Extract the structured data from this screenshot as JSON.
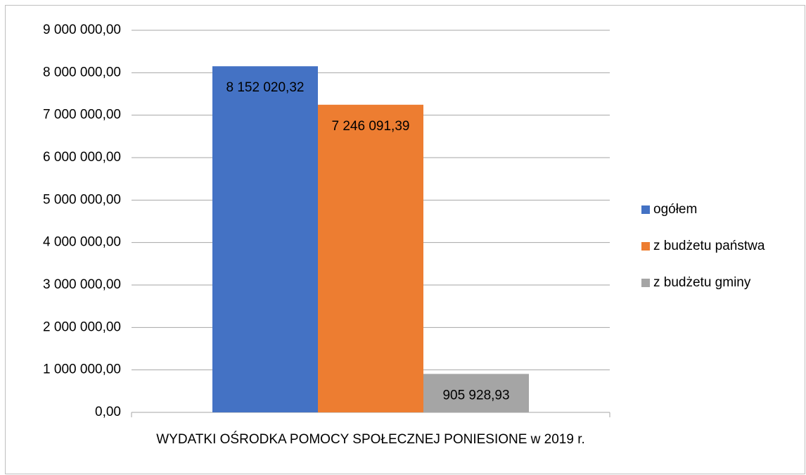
{
  "chart_data": {
    "type": "bar",
    "categories": [
      "WYDATKI OŚRODKA POMOCY SPOŁECZNEJ PONIESIONE w 2019 r."
    ],
    "series": [
      {
        "name": "ogółem",
        "color": "#4472c4",
        "values": [
          8152020.32
        ],
        "value_labels": [
          "8 152 020,32"
        ]
      },
      {
        "name": "z budżetu państwa",
        "color": "#ed7d31",
        "values": [
          7246091.39
        ],
        "value_labels": [
          "7 246 091,39"
        ]
      },
      {
        "name": "z budżetu gminy",
        "color": "#a5a5a5",
        "values": [
          905928.93
        ],
        "value_labels": [
          "905 928,93"
        ]
      }
    ],
    "ylim": [
      0,
      9000000
    ],
    "yticks": [
      {
        "value": 0,
        "label": "0,00"
      },
      {
        "value": 1000000,
        "label": "1 000 000,00"
      },
      {
        "value": 2000000,
        "label": "2 000 000,00"
      },
      {
        "value": 3000000,
        "label": "3 000 000,00"
      },
      {
        "value": 4000000,
        "label": "4 000 000,00"
      },
      {
        "value": 5000000,
        "label": "5 000 000,00"
      },
      {
        "value": 6000000,
        "label": "6 000 000,00"
      },
      {
        "value": 7000000,
        "label": "7 000 000,00"
      },
      {
        "value": 8000000,
        "label": "8 000 000,00"
      },
      {
        "value": 9000000,
        "label": "9 000 000,00"
      }
    ],
    "grid": true,
    "legend": "right"
  }
}
